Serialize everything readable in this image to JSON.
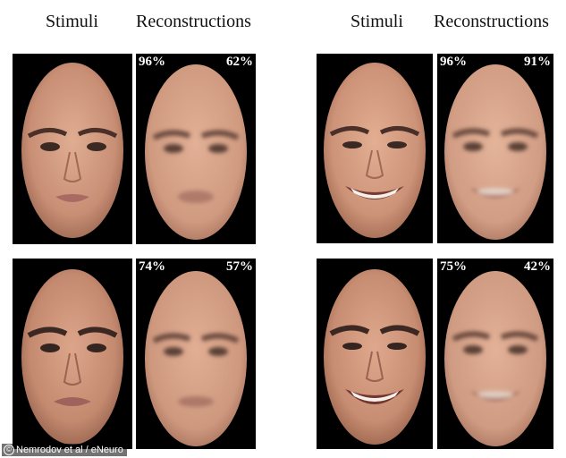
{
  "headers": {
    "left_stimuli": "Stimuli",
    "left_reconstructions": "Reconstructions",
    "right_stimuli": "Stimuli",
    "right_reconstructions": "Reconstructions"
  },
  "pairs": [
    {
      "stimulus": "neutral face, subject 1",
      "left_pct": "96%",
      "right_pct": "62%"
    },
    {
      "stimulus": "smiling face, subject 1",
      "left_pct": "96%",
      "right_pct": "91%"
    },
    {
      "stimulus": "neutral face, subject 2",
      "left_pct": "74%",
      "right_pct": "57%"
    },
    {
      "stimulus": "smiling face, subject 2",
      "left_pct": "75%",
      "right_pct": "42%"
    }
  ],
  "credit": {
    "icon": "copyright-icon",
    "text": "Nemrodov et al / eNeuro"
  },
  "colors": {
    "panel_bg": "#000000",
    "skin_light": "#d9a48a",
    "skin_mid": "#c88f75",
    "skin_dark": "#a8705a",
    "label_text": "#ffffff"
  }
}
